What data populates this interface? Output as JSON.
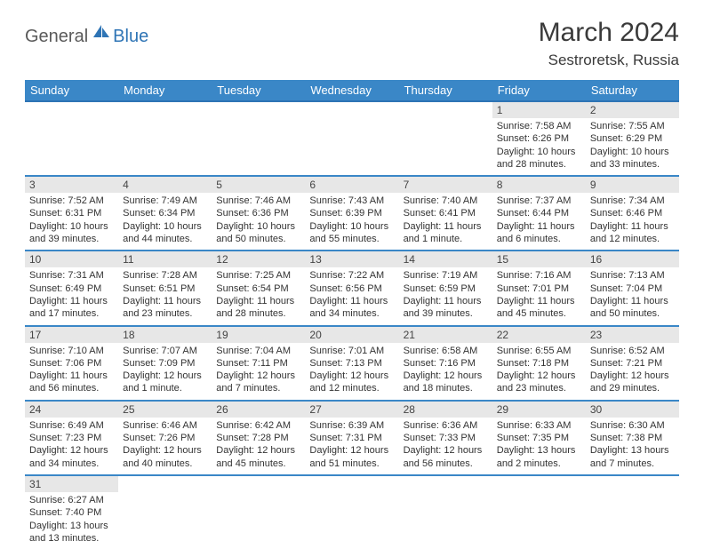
{
  "brand": {
    "part1": "General",
    "part2": "Blue"
  },
  "title": "March 2024",
  "location": "Sestroretsk, Russia",
  "colors": {
    "header_bg": "#3a87c7",
    "header_text": "#ffffff",
    "row_border": "#3a87c7",
    "daynum_bg": "#e7e7e7",
    "text": "#333333",
    "brand_gray": "#5a5a5a",
    "brand_blue": "#2e74b5"
  },
  "weekdays": [
    "Sunday",
    "Monday",
    "Tuesday",
    "Wednesday",
    "Thursday",
    "Friday",
    "Saturday"
  ],
  "days": {
    "1": {
      "sunrise": "7:58 AM",
      "sunset": "6:26 PM",
      "daylight": "10 hours and 28 minutes."
    },
    "2": {
      "sunrise": "7:55 AM",
      "sunset": "6:29 PM",
      "daylight": "10 hours and 33 minutes."
    },
    "3": {
      "sunrise": "7:52 AM",
      "sunset": "6:31 PM",
      "daylight": "10 hours and 39 minutes."
    },
    "4": {
      "sunrise": "7:49 AM",
      "sunset": "6:34 PM",
      "daylight": "10 hours and 44 minutes."
    },
    "5": {
      "sunrise": "7:46 AM",
      "sunset": "6:36 PM",
      "daylight": "10 hours and 50 minutes."
    },
    "6": {
      "sunrise": "7:43 AM",
      "sunset": "6:39 PM",
      "daylight": "10 hours and 55 minutes."
    },
    "7": {
      "sunrise": "7:40 AM",
      "sunset": "6:41 PM",
      "daylight": "11 hours and 1 minute."
    },
    "8": {
      "sunrise": "7:37 AM",
      "sunset": "6:44 PM",
      "daylight": "11 hours and 6 minutes."
    },
    "9": {
      "sunrise": "7:34 AM",
      "sunset": "6:46 PM",
      "daylight": "11 hours and 12 minutes."
    },
    "10": {
      "sunrise": "7:31 AM",
      "sunset": "6:49 PM",
      "daylight": "11 hours and 17 minutes."
    },
    "11": {
      "sunrise": "7:28 AM",
      "sunset": "6:51 PM",
      "daylight": "11 hours and 23 minutes."
    },
    "12": {
      "sunrise": "7:25 AM",
      "sunset": "6:54 PM",
      "daylight": "11 hours and 28 minutes."
    },
    "13": {
      "sunrise": "7:22 AM",
      "sunset": "6:56 PM",
      "daylight": "11 hours and 34 minutes."
    },
    "14": {
      "sunrise": "7:19 AM",
      "sunset": "6:59 PM",
      "daylight": "11 hours and 39 minutes."
    },
    "15": {
      "sunrise": "7:16 AM",
      "sunset": "7:01 PM",
      "daylight": "11 hours and 45 minutes."
    },
    "16": {
      "sunrise": "7:13 AM",
      "sunset": "7:04 PM",
      "daylight": "11 hours and 50 minutes."
    },
    "17": {
      "sunrise": "7:10 AM",
      "sunset": "7:06 PM",
      "daylight": "11 hours and 56 minutes."
    },
    "18": {
      "sunrise": "7:07 AM",
      "sunset": "7:09 PM",
      "daylight": "12 hours and 1 minute."
    },
    "19": {
      "sunrise": "7:04 AM",
      "sunset": "7:11 PM",
      "daylight": "12 hours and 7 minutes."
    },
    "20": {
      "sunrise": "7:01 AM",
      "sunset": "7:13 PM",
      "daylight": "12 hours and 12 minutes."
    },
    "21": {
      "sunrise": "6:58 AM",
      "sunset": "7:16 PM",
      "daylight": "12 hours and 18 minutes."
    },
    "22": {
      "sunrise": "6:55 AM",
      "sunset": "7:18 PM",
      "daylight": "12 hours and 23 minutes."
    },
    "23": {
      "sunrise": "6:52 AM",
      "sunset": "7:21 PM",
      "daylight": "12 hours and 29 minutes."
    },
    "24": {
      "sunrise": "6:49 AM",
      "sunset": "7:23 PM",
      "daylight": "12 hours and 34 minutes."
    },
    "25": {
      "sunrise": "6:46 AM",
      "sunset": "7:26 PM",
      "daylight": "12 hours and 40 minutes."
    },
    "26": {
      "sunrise": "6:42 AM",
      "sunset": "7:28 PM",
      "daylight": "12 hours and 45 minutes."
    },
    "27": {
      "sunrise": "6:39 AM",
      "sunset": "7:31 PM",
      "daylight": "12 hours and 51 minutes."
    },
    "28": {
      "sunrise": "6:36 AM",
      "sunset": "7:33 PM",
      "daylight": "12 hours and 56 minutes."
    },
    "29": {
      "sunrise": "6:33 AM",
      "sunset": "7:35 PM",
      "daylight": "13 hours and 2 minutes."
    },
    "30": {
      "sunrise": "6:30 AM",
      "sunset": "7:38 PM",
      "daylight": "13 hours and 7 minutes."
    },
    "31": {
      "sunrise": "6:27 AM",
      "sunset": "7:40 PM",
      "daylight": "13 hours and 13 minutes."
    }
  },
  "layout": {
    "type": "calendar",
    "first_weekday_index": 5,
    "rows": 6,
    "cols": 7,
    "font_size_body": 11,
    "font_size_header": 13,
    "font_size_title": 30,
    "font_size_location": 17
  }
}
